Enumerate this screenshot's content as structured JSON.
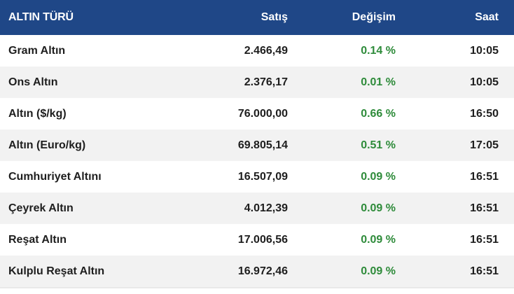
{
  "header": {
    "name": "ALTIN TÜRÜ",
    "sell": "Satış",
    "change": "Değişim",
    "time": "Saat"
  },
  "rows": [
    {
      "name": "Gram Altın",
      "sell": "2.466,49",
      "change": "0.14 %",
      "time": "10:05"
    },
    {
      "name": "Ons Altın",
      "sell": "2.376,17",
      "change": "0.01 %",
      "time": "10:05"
    },
    {
      "name": "Altın ($/kg)",
      "sell": "76.000,00",
      "change": "0.66 %",
      "time": "16:50"
    },
    {
      "name": "Altın (Euro/kg)",
      "sell": "69.805,14",
      "change": "0.51 %",
      "time": "17:05"
    },
    {
      "name": "Cumhuriyet Altını",
      "sell": "16.507,09",
      "change": "0.09 %",
      "time": "16:51"
    },
    {
      "name": "Çeyrek Altın",
      "sell": "4.012,39",
      "change": "0.09 %",
      "time": "16:51"
    },
    {
      "name": "Reşat Altın",
      "sell": "17.006,56",
      "change": "0.09 %",
      "time": "16:51"
    },
    {
      "name": "Kulplu Reşat Altın",
      "sell": "16.972,46",
      "change": "0.09 %",
      "time": "16:51"
    }
  ],
  "colors": {
    "header_bg": "#1f4787",
    "positive": "#2e8b3a"
  }
}
